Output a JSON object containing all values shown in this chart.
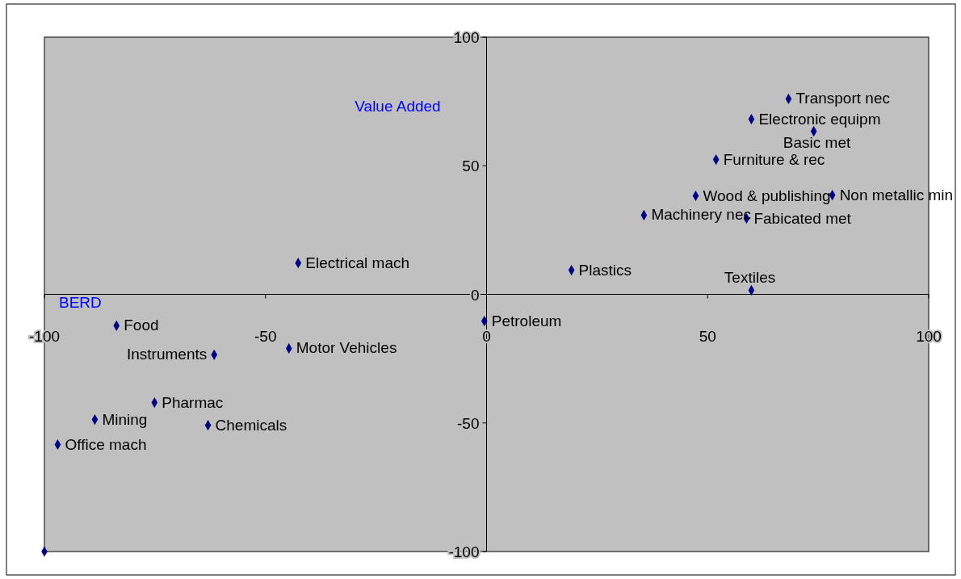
{
  "chart_data": {
    "type": "scatter",
    "xlabel": "BERD",
    "ylabel": "Value Added",
    "x": [
      68.3,
      59.9,
      74.0,
      51.9,
      78.2,
      47.3,
      35.6,
      58.8,
      19.2,
      59.9,
      -42.6,
      -0.5,
      -83.7,
      -44.7,
      -61.6,
      -75.1,
      -88.6,
      -63.0,
      -97.0,
      -100
    ],
    "series": [
      {
        "color": "#000080",
        "values": [
          76.0,
          68.1,
          63.4,
          52.4,
          38.6,
          38.3,
          30.8,
          29.5,
          9.4,
          1.6,
          12.2,
          -10.4,
          -12.2,
          -21.0,
          -23.5,
          -42.1,
          -48.7,
          -50.9,
          -58.4,
          -100
        ]
      }
    ],
    "annotations": [
      {
        "text": "Transport nec",
        "x": 68.3,
        "y": 76.0
      },
      {
        "text": "Electronic equipm",
        "x": 59.9,
        "y": 68.1
      },
      {
        "text": "Basic met",
        "x": 74.0,
        "y": 63.4
      },
      {
        "text": "Furniture & rec",
        "x": 51.9,
        "y": 52.4
      },
      {
        "text": "Non metallic min",
        "x": 78.2,
        "y": 38.6
      },
      {
        "text": "Wood & publishing",
        "x": 47.3,
        "y": 38.3
      },
      {
        "text": "Machinery nec",
        "x": 35.6,
        "y": 30.8
      },
      {
        "text": "Fabicated met",
        "x": 58.8,
        "y": 29.5
      },
      {
        "text": "Plastics",
        "x": 19.2,
        "y": 9.4
      },
      {
        "text": "Textiles",
        "x": 59.9,
        "y": 1.6
      },
      {
        "text": "Electrical mach",
        "x": -42.6,
        "y": 12.2
      },
      {
        "text": "Petroleum",
        "x": -0.5,
        "y": -10.4
      },
      {
        "text": "Food",
        "x": -83.7,
        "y": -12.2
      },
      {
        "text": "Motor Vehicles",
        "x": -44.7,
        "y": -21.0
      },
      {
        "text": "Instruments",
        "x": -61.6,
        "y": -23.5
      },
      {
        "text": "Pharmac",
        "x": -75.1,
        "y": -42.1
      },
      {
        "text": "Mining",
        "x": -88.6,
        "y": -48.7
      },
      {
        "text": "Chemicals",
        "x": -63.0,
        "y": -50.9
      },
      {
        "text": "Office mach",
        "x": -97.0,
        "y": -58.4
      }
    ],
    "xlim": [
      -100,
      100
    ],
    "ylim": [
      -100,
      100
    ],
    "xticks": [
      -100,
      -50,
      0,
      50,
      100
    ],
    "yticks": [
      -100,
      -50,
      0,
      50,
      100
    ],
    "marker": "diamond",
    "grid": false
  }
}
